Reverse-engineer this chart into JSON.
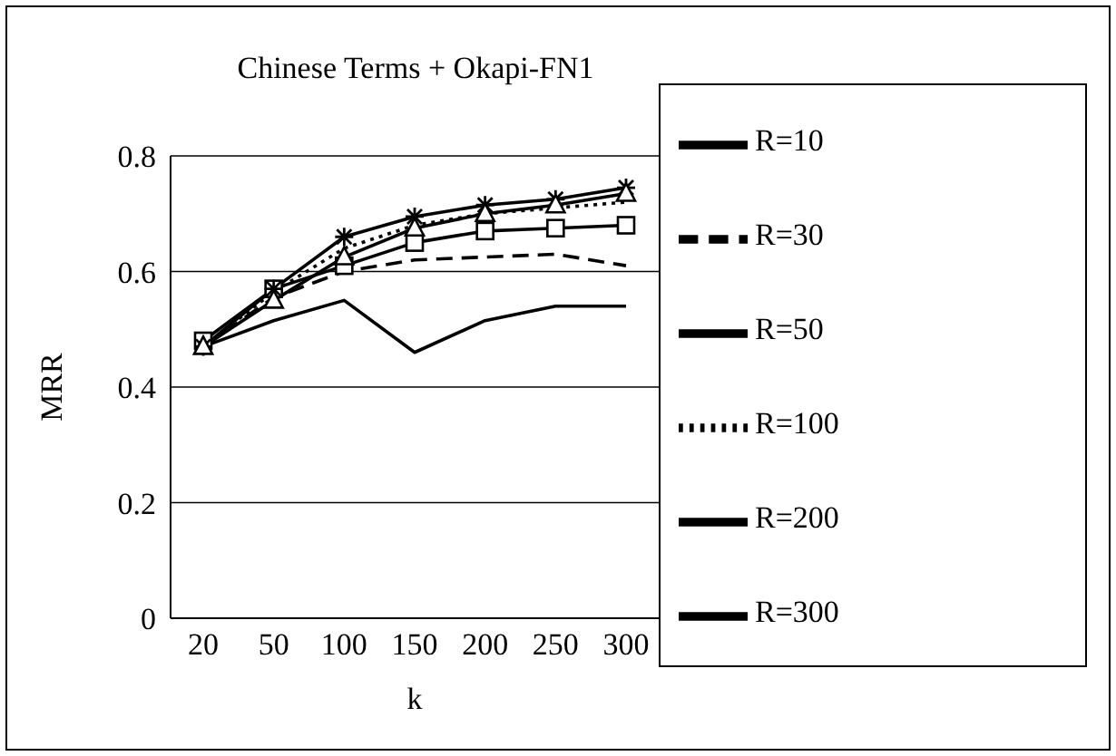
{
  "chart_data": {
    "type": "line",
    "title": "Chinese Terms + Okapi-FN1",
    "xlabel": "k",
    "ylabel": "MRR",
    "categories": [
      "20",
      "50",
      "100",
      "150",
      "200",
      "250",
      "300"
    ],
    "series": [
      {
        "name": "R=10",
        "color": "#000000",
        "marker": "none",
        "line_style": "solid",
        "values": [
          0.47,
          0.515,
          0.55,
          0.46,
          0.515,
          0.54,
          0.54
        ]
      },
      {
        "name": "R=30",
        "color": "#000000",
        "marker": "none",
        "line_style": "dashed",
        "values": [
          0.47,
          0.555,
          0.6,
          0.62,
          0.625,
          0.63,
          0.61
        ]
      },
      {
        "name": "R=50",
        "color": "#000000",
        "marker": "square",
        "line_style": "solid",
        "values": [
          0.48,
          0.57,
          0.61,
          0.65,
          0.67,
          0.675,
          0.68
        ]
      },
      {
        "name": "R=100",
        "color": "#000000",
        "marker": "none",
        "line_style": "dotted",
        "values": [
          0.47,
          0.565,
          0.64,
          0.68,
          0.7,
          0.71,
          0.72
        ]
      },
      {
        "name": "R=200",
        "color": "#000000",
        "marker": "cross",
        "line_style": "solid",
        "values": [
          0.47,
          0.57,
          0.66,
          0.695,
          0.715,
          0.725,
          0.745
        ]
      },
      {
        "name": "R=300",
        "color": "#000000",
        "marker": "triangle",
        "line_style": "solid",
        "values": [
          0.47,
          0.55,
          0.625,
          0.675,
          0.7,
          0.715,
          0.735
        ]
      }
    ],
    "ylim": [
      0,
      0.8
    ],
    "yticks": [
      0,
      0.2,
      0.4,
      0.6,
      0.8
    ],
    "grid": "y",
    "legend": "right"
  }
}
